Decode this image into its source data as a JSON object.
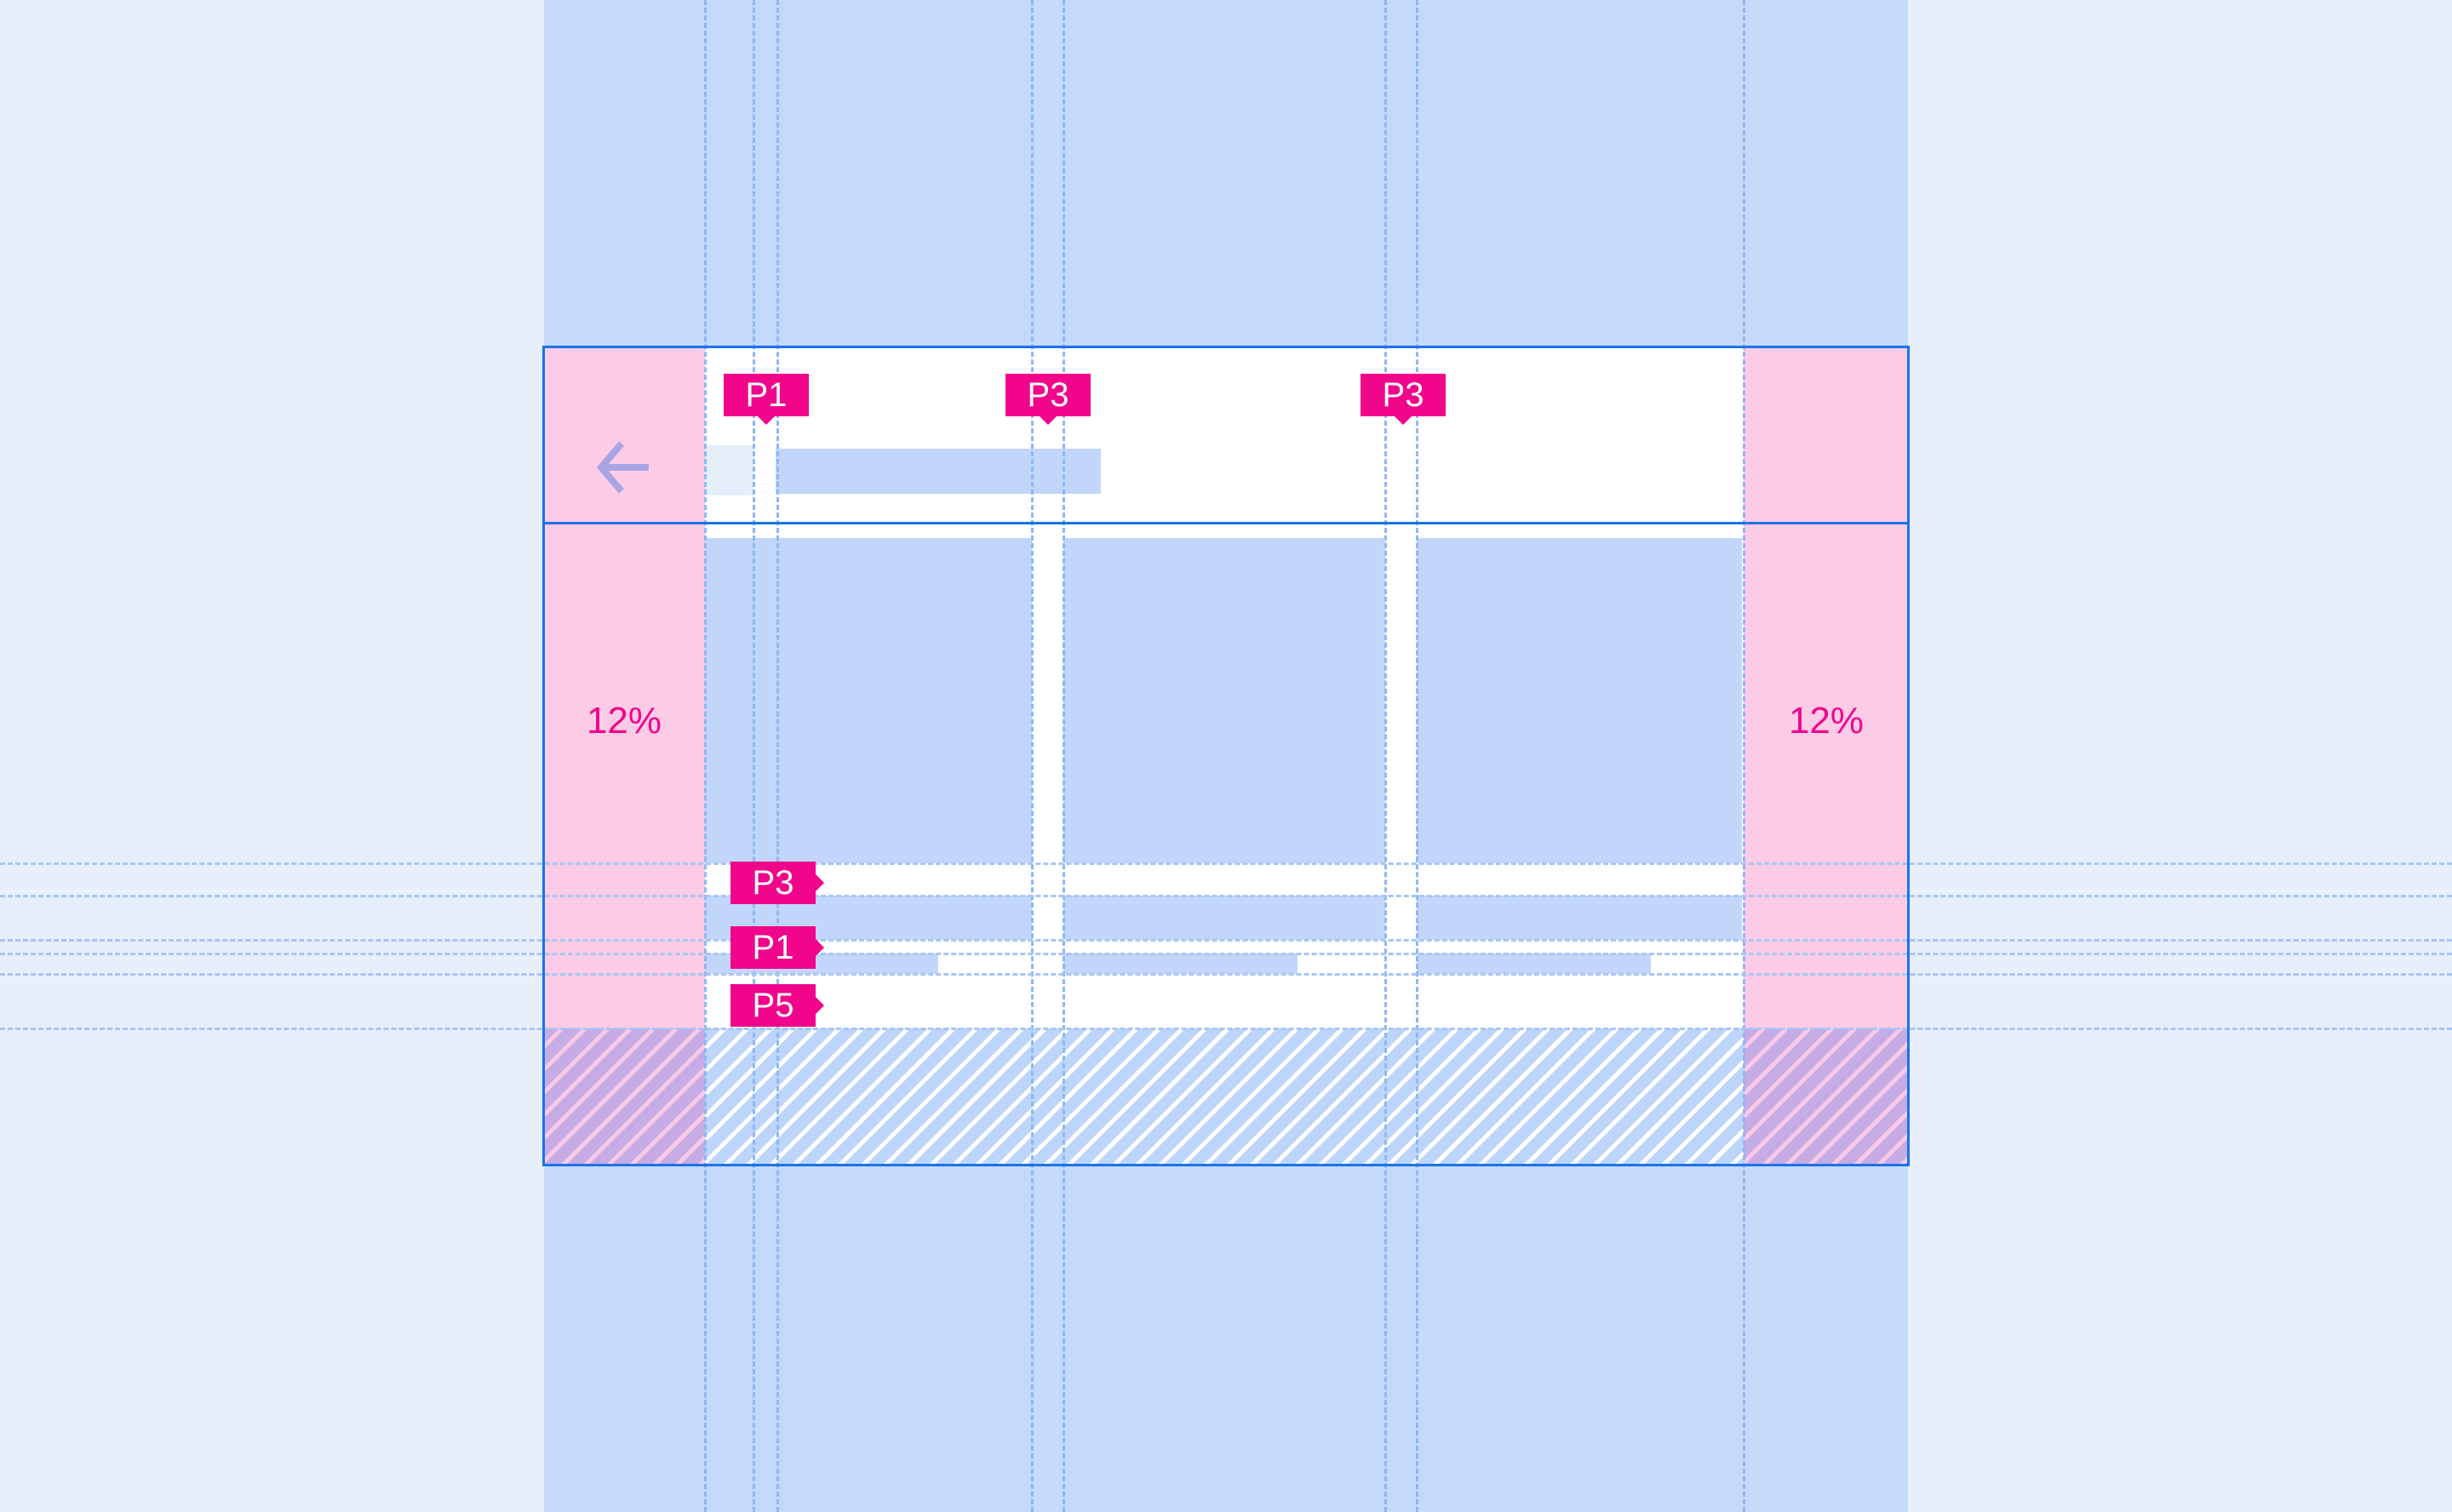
{
  "header": {
    "back_icon": "arrow-left-icon"
  },
  "margins": {
    "left_label": "12%",
    "right_label": "12%"
  },
  "column_tags": [
    "P1",
    "P3",
    "P3"
  ],
  "row_tags": [
    "P3",
    "P1",
    "P5"
  ],
  "colors": {
    "accent": "#f0058b",
    "frame": "#1a73e8",
    "margin": "#fccbe6",
    "placeholder": "#c2d6fb",
    "background": "#e8effc",
    "band": "#c5d9fa"
  }
}
